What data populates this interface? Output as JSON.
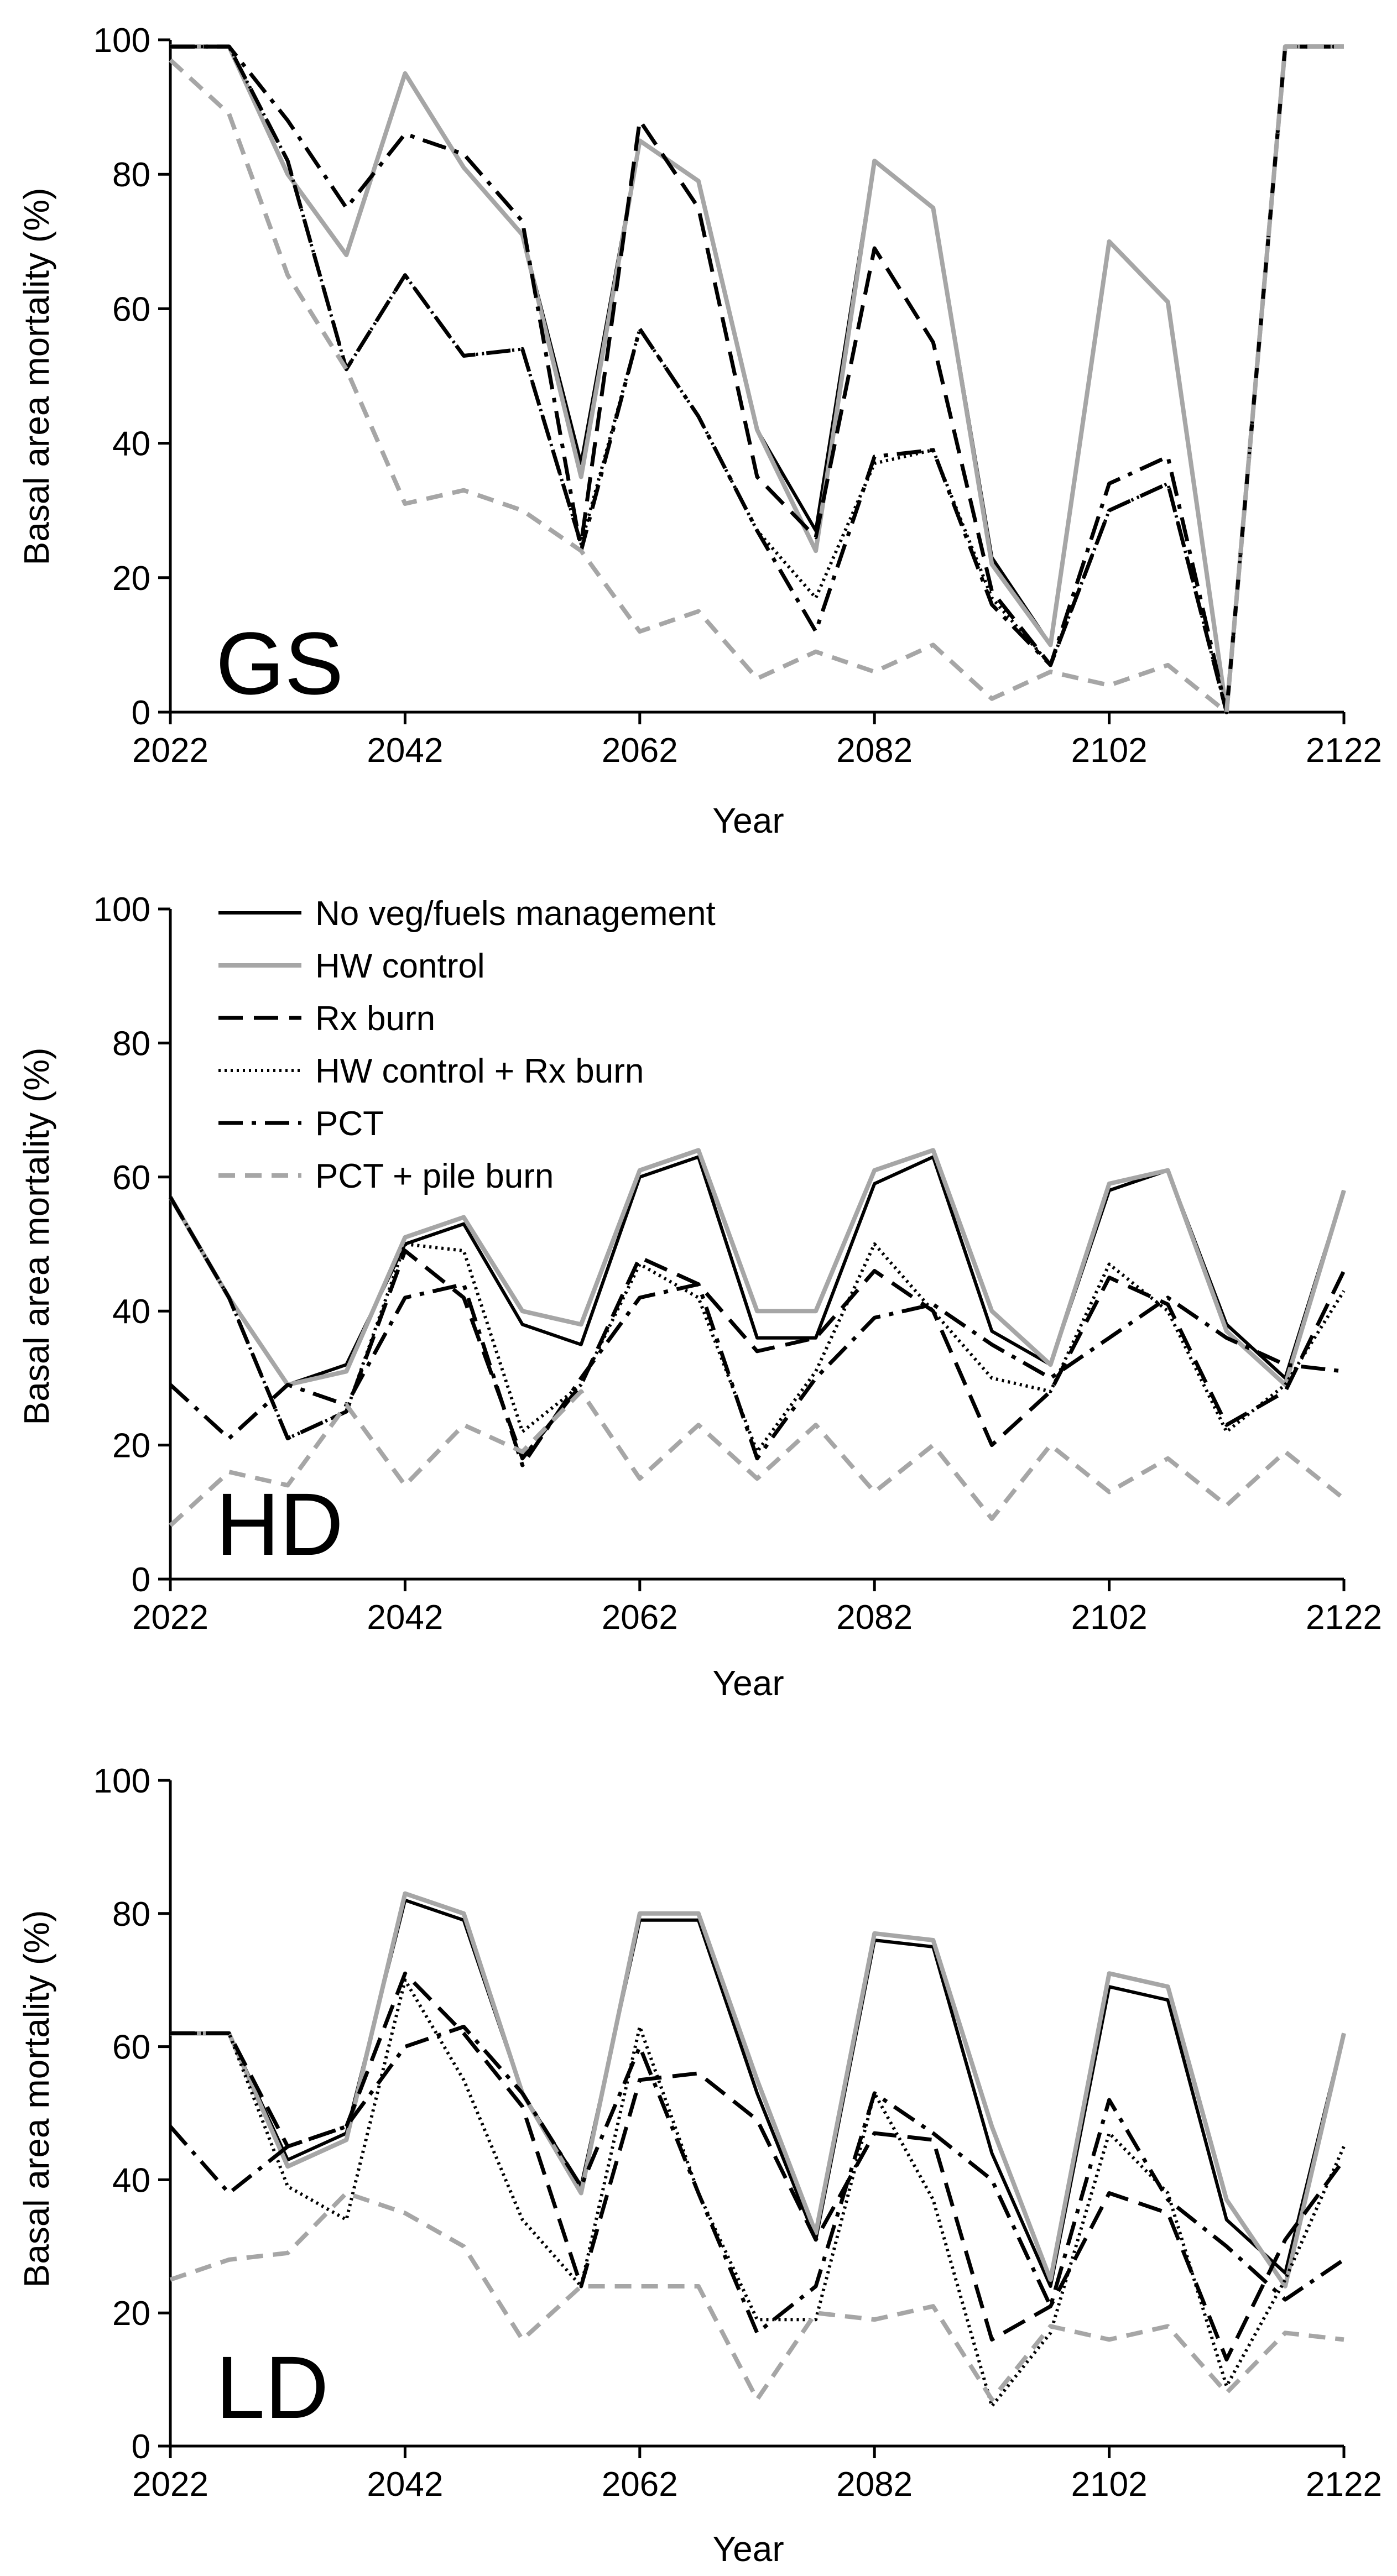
{
  "series_styles": [
    {
      "key": "no_mgmt",
      "color": "#000000",
      "width": 6,
      "dash": ""
    },
    {
      "key": "hw_control",
      "color": "#a6a6a6",
      "width": 8,
      "dash": ""
    },
    {
      "key": "rx_burn",
      "color": "#000000",
      "width": 7,
      "dash": "44 20"
    },
    {
      "key": "hw_rx",
      "color": "#000000",
      "width": 6,
      "dash": "4 7"
    },
    {
      "key": "pct",
      "color": "#000000",
      "width": 7,
      "dash": "44 16 8 16"
    },
    {
      "key": "pct_pile",
      "color": "#a6a6a6",
      "width": 8,
      "dash": "30 18"
    }
  ],
  "legend": {
    "placement": "top-left of second panel",
    "entries": [
      "No veg/fuels management",
      "HW control",
      "Rx burn",
      "HW control + Rx burn",
      "PCT",
      "PCT + pile burn"
    ]
  },
  "chart_data": [
    {
      "type": "line",
      "panel": "GS",
      "xlabel": "Year",
      "ylabel": "Basal area mortality (%)",
      "xlim": [
        2022,
        2122
      ],
      "ylim": [
        0,
        100
      ],
      "xticks": [
        "2022",
        "2042",
        "2062",
        "2082",
        "2102",
        "2122"
      ],
      "yticks": [
        "0",
        "20",
        "40",
        "60",
        "80",
        "100"
      ],
      "x": [
        2022,
        2027,
        2032,
        2037,
        2042,
        2047,
        2052,
        2057,
        2062,
        2067,
        2072,
        2077,
        2082,
        2087,
        2092,
        2097,
        2102,
        2107,
        2112,
        2117,
        2122
      ],
      "series": [
        {
          "name": "No veg/fuels management",
          "values": [
            99,
            99,
            80,
            68,
            95,
            81,
            71,
            37,
            85,
            79,
            42,
            27,
            82,
            75,
            23,
            10,
            70,
            61,
            0,
            99,
            99
          ]
        },
        {
          "name": "HW control",
          "values": [
            99,
            99,
            80,
            68,
            95,
            81,
            71,
            35,
            85,
            79,
            42,
            24,
            82,
            75,
            22,
            10,
            70,
            61,
            0,
            99,
            99
          ]
        },
        {
          "name": "Rx burn",
          "values": [
            99,
            99,
            82,
            51,
            65,
            53,
            54,
            25,
            88,
            75,
            35,
            26,
            69,
            55,
            18,
            7,
            30,
            34,
            0,
            99,
            99
          ]
        },
        {
          "name": "HW control + Rx burn",
          "values": [
            99,
            99,
            82,
            51,
            65,
            53,
            54,
            25,
            57,
            44,
            27,
            17,
            37,
            39,
            17,
            7,
            30,
            34,
            0,
            99,
            99
          ]
        },
        {
          "name": "PCT",
          "values": [
            99,
            99,
            88,
            75,
            86,
            83,
            73,
            24,
            57,
            44,
            27,
            12,
            38,
            39,
            16,
            7,
            34,
            38,
            0,
            99,
            99
          ]
        },
        {
          "name": "PCT + pile burn",
          "values": [
            97,
            89,
            65,
            51,
            31,
            33,
            30,
            24,
            12,
            15,
            5,
            9,
            6,
            10,
            2,
            6,
            4,
            7,
            0,
            99,
            99
          ]
        }
      ]
    },
    {
      "type": "line",
      "panel": "HD",
      "xlabel": "Year",
      "ylabel": "Basal area mortality (%)",
      "xlim": [
        2022,
        2122
      ],
      "ylim": [
        0,
        100
      ],
      "xticks": [
        "2022",
        "2042",
        "2062",
        "2082",
        "2102",
        "2122"
      ],
      "yticks": [
        "0",
        "20",
        "40",
        "60",
        "80",
        "100"
      ],
      "x": [
        2022,
        2027,
        2032,
        2037,
        2042,
        2047,
        2052,
        2057,
        2062,
        2067,
        2072,
        2077,
        2082,
        2087,
        2092,
        2097,
        2102,
        2107,
        2112,
        2117,
        2122
      ],
      "series": [
        {
          "name": "No veg/fuels management",
          "values": [
            57,
            42,
            29,
            32,
            50,
            53,
            38,
            35,
            60,
            63,
            36,
            36,
            59,
            63,
            37,
            32,
            58,
            61,
            38,
            30,
            58
          ]
        },
        {
          "name": "HW control",
          "values": [
            57,
            42,
            29,
            31,
            51,
            54,
            40,
            38,
            61,
            64,
            40,
            40,
            61,
            64,
            40,
            32,
            59,
            61,
            37,
            29,
            58
          ]
        },
        {
          "name": "Rx burn",
          "values": [
            57,
            42,
            21,
            25,
            49,
            42,
            18,
            29,
            48,
            44,
            34,
            36,
            46,
            40,
            20,
            28,
            45,
            41,
            23,
            28,
            46
          ]
        },
        {
          "name": "HW control + Rx burn",
          "values": [
            57,
            42,
            21,
            25,
            50,
            49,
            22,
            29,
            47,
            42,
            19,
            31,
            50,
            40,
            30,
            28,
            47,
            40,
            22,
            29,
            43
          ]
        },
        {
          "name": "PCT",
          "values": [
            29,
            21,
            29,
            26,
            42,
            44,
            17,
            30,
            42,
            44,
            18,
            30,
            39,
            41,
            35,
            30,
            36,
            42,
            36,
            32,
            31
          ]
        },
        {
          "name": "PCT + pile burn",
          "values": [
            8,
            16,
            14,
            26,
            14,
            23,
            19,
            28,
            15,
            23,
            15,
            23,
            13,
            20,
            9,
            20,
            13,
            18,
            11,
            19,
            12
          ]
        }
      ]
    },
    {
      "type": "line",
      "panel": "LD",
      "xlabel": "Year",
      "ylabel": "Basal area mortality (%)",
      "xlim": [
        2022,
        2122
      ],
      "ylim": [
        0,
        100
      ],
      "xticks": [
        "2022",
        "2042",
        "2062",
        "2082",
        "2102",
        "2122"
      ],
      "yticks": [
        "0",
        "20",
        "40",
        "60",
        "80",
        "100"
      ],
      "x": [
        2022,
        2027,
        2032,
        2037,
        2042,
        2047,
        2052,
        2057,
        2062,
        2067,
        2072,
        2077,
        2082,
        2087,
        2092,
        2097,
        2102,
        2107,
        2112,
        2117,
        2122
      ],
      "series": [
        {
          "name": "No veg/fuels management",
          "values": [
            62,
            62,
            43,
            47,
            82,
            79,
            53,
            39,
            79,
            79,
            53,
            31,
            76,
            75,
            44,
            24,
            69,
            67,
            34,
            26,
            62
          ]
        },
        {
          "name": "HW control",
          "values": [
            62,
            62,
            42,
            46,
            83,
            80,
            53,
            38,
            80,
            80,
            55,
            32,
            77,
            76,
            48,
            25,
            71,
            69,
            37,
            24,
            62
          ]
        },
        {
          "name": "Rx burn",
          "values": [
            62,
            62,
            45,
            48,
            71,
            62,
            51,
            24,
            55,
            56,
            49,
            31,
            47,
            46,
            16,
            21,
            38,
            35,
            13,
            31,
            43
          ]
        },
        {
          "name": "HW control + Rx burn",
          "values": [
            62,
            62,
            39,
            34,
            70,
            55,
            34,
            24,
            63,
            38,
            19,
            19,
            53,
            37,
            6,
            17,
            47,
            38,
            9,
            25,
            45
          ]
        },
        {
          "name": "PCT",
          "values": [
            48,
            38,
            45,
            48,
            60,
            63,
            53,
            39,
            60,
            38,
            17,
            24,
            53,
            47,
            40,
            21,
            52,
            37,
            30,
            22,
            28
          ]
        },
        {
          "name": "PCT + pile burn",
          "values": [
            25,
            28,
            29,
            38,
            35,
            30,
            16,
            24,
            24,
            24,
            7,
            20,
            19,
            21,
            7,
            18,
            16,
            18,
            8,
            17,
            16
          ]
        }
      ]
    }
  ]
}
